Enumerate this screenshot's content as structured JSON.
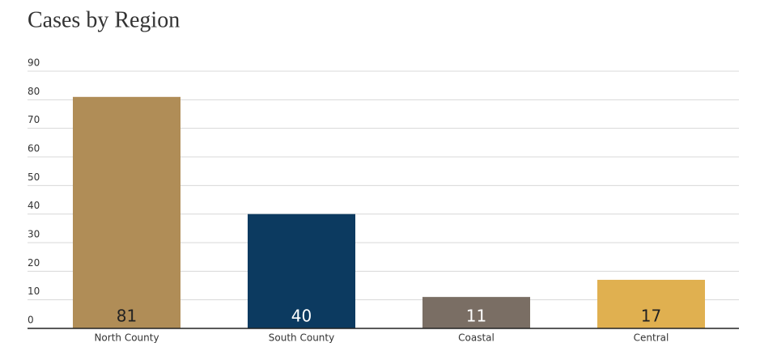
{
  "chart_data": {
    "type": "bar",
    "title": "Cases by Region",
    "categories": [
      "North County",
      "South County",
      "Coastal",
      "Central"
    ],
    "values": [
      81,
      40,
      11,
      17
    ],
    "colors": [
      "#b08d57",
      "#0c3a60",
      "#7a6e64",
      "#e0b050"
    ],
    "ylim": [
      0,
      90
    ],
    "yticks": [
      0,
      10,
      20,
      30,
      40,
      50,
      60,
      70,
      80,
      90
    ],
    "grid": true
  }
}
